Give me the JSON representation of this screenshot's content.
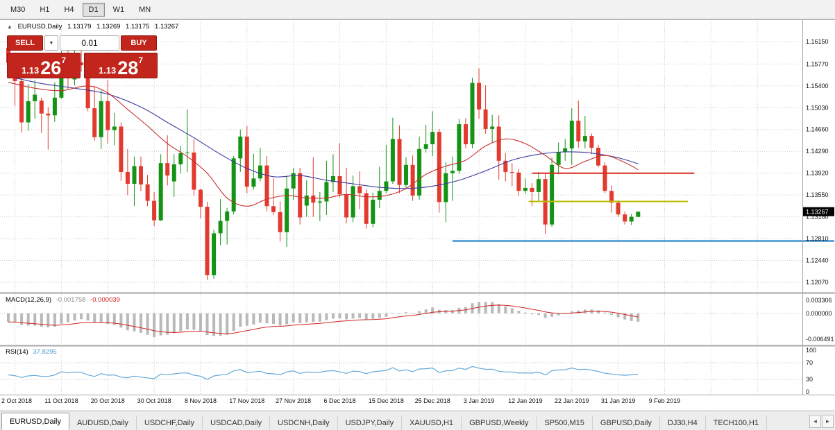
{
  "toolbar": {
    "timeframes": [
      "M30",
      "H1",
      "H4",
      "D1",
      "W1",
      "MN"
    ],
    "active": "D1"
  },
  "icons": {
    "collapse_up": "▲",
    "dropdown_down": "▼",
    "tabs_left": "◄",
    "tabs_right": "►"
  },
  "chart": {
    "title": {
      "symbol": "EURUSD,Daily",
      "open": "1.13179",
      "high": "1.13269",
      "low": "1.13175",
      "close": "1.13267"
    },
    "trade_panel": {
      "sell_label": "SELL",
      "buy_label": "BUY",
      "volume": "0.01",
      "sell_price": {
        "prefix": "1.13",
        "big": "26",
        "sup": "7"
      },
      "buy_price": {
        "prefix": "1.13",
        "big": "28",
        "sup": "7"
      }
    },
    "price_axis": [
      "1.16150",
      "1.15770",
      "1.15400",
      "1.15030",
      "1.14660",
      "1.14290",
      "1.13920",
      "1.13550",
      "1.13180",
      "1.12810",
      "1.12440",
      "1.12070"
    ],
    "current_price": "1.13267"
  },
  "indicators": {
    "macd": {
      "label": "MACD(12,26,9)",
      "value": "-0.001758",
      "signal_value": "-0.000039",
      "axis": [
        "0.003306",
        "0.000000",
        "-0.006491"
      ]
    },
    "rsi": {
      "label": "RSI(14)",
      "value": "37.8295",
      "axis": [
        "100",
        "70",
        "30",
        "0"
      ]
    }
  },
  "tabbar": {
    "active_index": 0,
    "tabs": [
      "EURUSD,Daily",
      "AUDUSD,Daily",
      "USDCHF,Daily",
      "USDCAD,Daily",
      "USDCNH,Daily",
      "USDJPY,Daily",
      "XAUUSD,H1",
      "GBPUSD,Weekly",
      "SP500,M15",
      "GBPUSD,Daily",
      "DJ30,H4",
      "TECH100,H1"
    ]
  },
  "colors": {
    "candle_up": "#149414",
    "candle_down": "#e23a2e",
    "ma_red": "#c62f2f",
    "ma_blue": "#3c3ca0",
    "macd_hist": "#b9b9b9",
    "macd_signal": "#cf2222",
    "rsi_line": "#63a8d8",
    "panel_red": "#c1251c",
    "badge_bg": "#000000",
    "badge_text": "#ffffff"
  },
  "chart_data": {
    "type": "candlestick",
    "symbol": "EURUSD",
    "timeframe": "D1",
    "y_ticks": [
      1.1615,
      1.1577,
      1.154,
      1.1503,
      1.1466,
      1.1429,
      1.1392,
      1.1355,
      1.1318,
      1.1281,
      1.1244,
      1.1207
    ],
    "x_labels": [
      {
        "bar": 1,
        "label": "2 Oct 2018"
      },
      {
        "bar": 8,
        "label": "11 Oct 2018"
      },
      {
        "bar": 15,
        "label": "20 Oct 2018"
      },
      {
        "bar": 22,
        "label": "30 Oct 2018"
      },
      {
        "bar": 29,
        "label": "8 Nov 2018"
      },
      {
        "bar": 36,
        "label": "17 Nov 2018"
      },
      {
        "bar": 43,
        "label": "27 Nov 2018"
      },
      {
        "bar": 50,
        "label": "6 Dec 2018"
      },
      {
        "bar": 57,
        "label": "15 Dec 2018"
      },
      {
        "bar": 64,
        "label": "25 Dec 2018"
      },
      {
        "bar": 71,
        "label": "3 Jan 2019"
      },
      {
        "bar": 78,
        "label": "12 Jan 2019"
      },
      {
        "bar": 85,
        "label": "22 Jan 2019"
      },
      {
        "bar": 92,
        "label": "31 Jan 2019"
      },
      {
        "bar": 99,
        "label": "9 Feb 2019"
      }
    ],
    "candles": [
      [
        1.1604,
        1.1608,
        1.1564,
        1.1579
      ],
      [
        1.1579,
        1.1582,
        1.1506,
        1.1548
      ],
      [
        1.1548,
        1.1594,
        1.1461,
        1.1478
      ],
      [
        1.1478,
        1.1543,
        1.1464,
        1.1514
      ],
      [
        1.1514,
        1.155,
        1.1484,
        1.1525
      ],
      [
        1.1515,
        1.152,
        1.146,
        1.1493
      ],
      [
        1.1493,
        1.1504,
        1.1432,
        1.149
      ],
      [
        1.149,
        1.1546,
        1.1479,
        1.152
      ],
      [
        1.152,
        1.1599,
        1.1518,
        1.1592
      ],
      [
        1.1592,
        1.1611,
        1.1535,
        1.1561
      ],
      [
        1.1551,
        1.1606,
        1.1541,
        1.158
      ],
      [
        1.158,
        1.1621,
        1.1564,
        1.1575
      ],
      [
        1.1575,
        1.1581,
        1.1497,
        1.1502
      ],
      [
        1.1502,
        1.154,
        1.1447,
        1.1453
      ],
      [
        1.1453,
        1.1533,
        1.1433,
        1.1514
      ],
      [
        1.1514,
        1.155,
        1.1442,
        1.1465
      ],
      [
        1.1465,
        1.1494,
        1.1439,
        1.1471
      ],
      [
        1.1471,
        1.1478,
        1.1379,
        1.1394
      ],
      [
        1.1394,
        1.1433,
        1.1355,
        1.1374
      ],
      [
        1.1374,
        1.142,
        1.1336,
        1.1404
      ],
      [
        1.1404,
        1.142,
        1.1362,
        1.1373
      ],
      [
        1.1373,
        1.1389,
        1.1336,
        1.1345
      ],
      [
        1.1345,
        1.136,
        1.1302,
        1.1312
      ],
      [
        1.1312,
        1.1424,
        1.1311,
        1.1409
      ],
      [
        1.1409,
        1.1456,
        1.1371,
        1.1388
      ],
      [
        1.1378,
        1.1424,
        1.1352,
        1.1407
      ],
      [
        1.1407,
        1.1438,
        1.1392,
        1.1426
      ],
      [
        1.1426,
        1.15,
        1.1394,
        1.1427
      ],
      [
        1.1427,
        1.1449,
        1.1354,
        1.1364
      ],
      [
        1.1364,
        1.1366,
        1.1315,
        1.1335
      ],
      [
        1.1335,
        1.1343,
        1.1211,
        1.1219
      ],
      [
        1.1219,
        1.1296,
        1.1213,
        1.129
      ],
      [
        1.129,
        1.1348,
        1.127,
        1.1311
      ],
      [
        1.1311,
        1.1333,
        1.1271,
        1.1327
      ],
      [
        1.1327,
        1.1421,
        1.1322,
        1.1417
      ],
      [
        1.1417,
        1.1466,
        1.1394,
        1.1454
      ],
      [
        1.1454,
        1.1472,
        1.1358,
        1.1369
      ],
      [
        1.1369,
        1.1425,
        1.1364,
        1.1383
      ],
      [
        1.1383,
        1.1435,
        1.1378,
        1.1405
      ],
      [
        1.1405,
        1.1421,
        1.1327,
        1.1336
      ],
      [
        1.1336,
        1.1383,
        1.1321,
        1.1326
      ],
      [
        1.1326,
        1.1344,
        1.1276,
        1.1292
      ],
      [
        1.1292,
        1.1387,
        1.1267,
        1.1366
      ],
      [
        1.1366,
        1.1401,
        1.1347,
        1.1392
      ],
      [
        1.1392,
        1.1401,
        1.1305,
        1.1317
      ],
      [
        1.1337,
        1.138,
        1.1318,
        1.1354
      ],
      [
        1.1354,
        1.1419,
        1.1318,
        1.1342
      ],
      [
        1.1342,
        1.136,
        1.1311,
        1.1344
      ],
      [
        1.1344,
        1.1413,
        1.1321,
        1.1377
      ],
      [
        1.1377,
        1.1424,
        1.136,
        1.1387
      ],
      [
        1.1387,
        1.1443,
        1.1351,
        1.1356
      ],
      [
        1.1356,
        1.1401,
        1.1307,
        1.1317
      ],
      [
        1.1317,
        1.1388,
        1.1309,
        1.137
      ],
      [
        1.137,
        1.1395,
        1.1331,
        1.1358
      ],
      [
        1.1358,
        1.1365,
        1.1298,
        1.1306
      ],
      [
        1.1306,
        1.1359,
        1.13,
        1.1347
      ],
      [
        1.1347,
        1.1403,
        1.1333,
        1.1362
      ],
      [
        1.1362,
        1.144,
        1.1358,
        1.1378
      ],
      [
        1.1378,
        1.1486,
        1.1374,
        1.145
      ],
      [
        1.145,
        1.1473,
        1.1358,
        1.1372
      ],
      [
        1.1372,
        1.1419,
        1.1365,
        1.1406
      ],
      [
        1.1406,
        1.1422,
        1.1345,
        1.1354
      ],
      [
        1.1354,
        1.1454,
        1.1347,
        1.1433
      ],
      [
        1.1433,
        1.1474,
        1.1427,
        1.1441
      ],
      [
        1.1441,
        1.1497,
        1.1421,
        1.1462
      ],
      [
        1.1462,
        1.1467,
        1.1325,
        1.1343
      ],
      [
        1.1343,
        1.1411,
        1.1309,
        1.1392
      ],
      [
        1.1392,
        1.142,
        1.1345,
        1.1396
      ],
      [
        1.1396,
        1.1484,
        1.1391,
        1.1475
      ],
      [
        1.1475,
        1.1485,
        1.1434,
        1.1441
      ],
      [
        1.1441,
        1.1554,
        1.1434,
        1.1545
      ],
      [
        1.1545,
        1.157,
        1.1484,
        1.15
      ],
      [
        1.15,
        1.1541,
        1.1459,
        1.1467
      ],
      [
        1.1467,
        1.1491,
        1.1444,
        1.1471
      ],
      [
        1.1471,
        1.149,
        1.1381,
        1.1413
      ],
      [
        1.1413,
        1.1426,
        1.1378,
        1.1394
      ],
      [
        1.1394,
        1.1409,
        1.137,
        1.1393
      ],
      [
        1.1393,
        1.1399,
        1.1353,
        1.1362
      ],
      [
        1.1362,
        1.1383,
        1.1357,
        1.1367
      ],
      [
        1.1367,
        1.1375,
        1.1336,
        1.136
      ],
      [
        1.136,
        1.1394,
        1.1345,
        1.1382
      ],
      [
        1.1382,
        1.1392,
        1.1289,
        1.1305
      ],
      [
        1.1305,
        1.1419,
        1.1301,
        1.1406
      ],
      [
        1.1406,
        1.1444,
        1.139,
        1.1428
      ],
      [
        1.1428,
        1.145,
        1.1413,
        1.1434
      ],
      [
        1.1434,
        1.1502,
        1.1406,
        1.1481
      ],
      [
        1.1481,
        1.1515,
        1.1435,
        1.1446
      ],
      [
        1.1446,
        1.1489,
        1.1434,
        1.1455
      ],
      [
        1.1455,
        1.1459,
        1.1424,
        1.1435
      ],
      [
        1.1435,
        1.144,
        1.1402,
        1.1405
      ],
      [
        1.1405,
        1.141,
        1.1358,
        1.1362
      ],
      [
        1.1362,
        1.1371,
        1.1325,
        1.1342
      ],
      [
        1.1342,
        1.1346,
        1.1318,
        1.1322
      ],
      [
        1.1322,
        1.1327,
        1.1305,
        1.131
      ],
      [
        1.131,
        1.1323,
        1.1304,
        1.1318
      ],
      [
        1.13179,
        1.13269,
        1.13175,
        1.13267
      ]
    ],
    "overlays": {
      "ma_red": [
        [
          0,
          1.1546
        ],
        [
          4,
          1.1536
        ],
        [
          8,
          1.1532
        ],
        [
          12,
          1.154
        ],
        [
          15,
          1.1528
        ],
        [
          18,
          1.15
        ],
        [
          21,
          1.1472
        ],
        [
          24,
          1.1442
        ],
        [
          27,
          1.142
        ],
        [
          30,
          1.1392
        ],
        [
          33,
          1.135
        ],
        [
          36,
          1.1336
        ],
        [
          39,
          1.1348
        ],
        [
          42,
          1.1354
        ],
        [
          45,
          1.135
        ],
        [
          48,
          1.135
        ],
        [
          51,
          1.1356
        ],
        [
          54,
          1.1352
        ],
        [
          57,
          1.1354
        ],
        [
          60,
          1.1366
        ],
        [
          63,
          1.139
        ],
        [
          66,
          1.1404
        ],
        [
          69,
          1.1414
        ],
        [
          72,
          1.1438
        ],
        [
          75,
          1.145
        ],
        [
          78,
          1.1442
        ],
        [
          81,
          1.1422
        ],
        [
          84,
          1.14
        ],
        [
          87,
          1.1412
        ],
        [
          90,
          1.1422
        ],
        [
          93,
          1.141
        ],
        [
          95,
          1.1398
        ]
      ],
      "ma_blue": [
        [
          0,
          1.1556
        ],
        [
          5,
          1.1544
        ],
        [
          10,
          1.1536
        ],
        [
          15,
          1.1526
        ],
        [
          20,
          1.1504
        ],
        [
          24,
          1.1478
        ],
        [
          28,
          1.1452
        ],
        [
          32,
          1.1424
        ],
        [
          36,
          1.14
        ],
        [
          40,
          1.1386
        ],
        [
          44,
          1.1388
        ],
        [
          48,
          1.138
        ],
        [
          52,
          1.1374
        ],
        [
          56,
          1.1368
        ],
        [
          60,
          1.1366
        ],
        [
          64,
          1.137
        ],
        [
          68,
          1.138
        ],
        [
          72,
          1.1396
        ],
        [
          76,
          1.1414
        ],
        [
          80,
          1.1424
        ],
        [
          84,
          1.1428
        ],
        [
          88,
          1.1426
        ],
        [
          92,
          1.1418
        ],
        [
          95,
          1.1408
        ]
      ],
      "hlines": [
        {
          "name": "hline-resistance-red",
          "color": "#d62a22",
          "price": 1.1392,
          "x1_bar": 79,
          "x2_bar": 103.5,
          "width": 2
        },
        {
          "name": "hline-support-olive",
          "color": "#b9bd00",
          "price": 1.1344,
          "x1_bar": 78.5,
          "x2_bar": 102.5,
          "width": 2
        },
        {
          "name": "hline-support-blue",
          "color": "#3f92d2",
          "price": 1.1277,
          "x1_bar": 67,
          "x2_bar": 126,
          "width": 2.5
        }
      ]
    },
    "macd_periods": [
      12,
      26,
      9
    ],
    "macd_axis_values": [
      0.003306,
      0,
      -0.006491
    ],
    "rsi_period": 14,
    "rsi_axis_values": [
      100,
      70,
      30,
      0
    ],
    "rsi_levels": [
      70,
      30
    ]
  }
}
